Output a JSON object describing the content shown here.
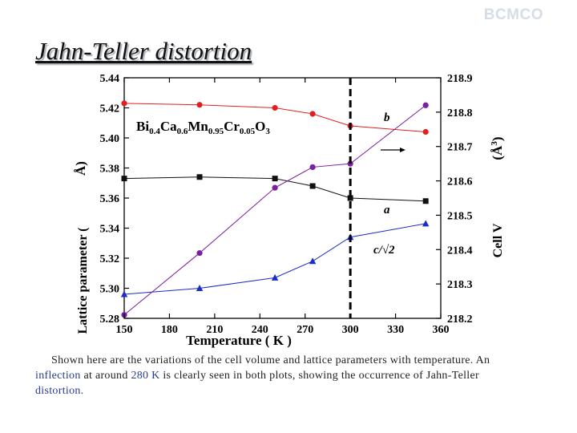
{
  "watermark": "BCMCO",
  "title": "Jahn-Teller distortion",
  "caption": {
    "part1": "Shown here are the variations of the cell volume and lattice parameters with temperature. An ",
    "hl1": "inflection",
    "part2": " at around ",
    "hl2": "280 K",
    "part3": " is clearly seen in both plots, showing the occurrence of Jahn-Teller ",
    "hl3": "distortion."
  },
  "chart_data": {
    "type": "line",
    "xlabel": "Temperature ( K )",
    "ylabel_left": "Lattice parameter (Å)",
    "ylabel_right": "Cell V (Å³)",
    "xlim": [
      150,
      360
    ],
    "xticks": [
      150,
      180,
      210,
      240,
      270,
      300,
      330,
      360
    ],
    "ylim_left": [
      5.28,
      5.44
    ],
    "yticks_left": [
      "5.28",
      "5.30",
      "5.32",
      "5.34",
      "5.36",
      "5.38",
      "5.40",
      "5.42",
      "5.44"
    ],
    "ylim_right": [
      218.2,
      218.9
    ],
    "yticks_right": [
      "218.2",
      "218.3",
      "218.4",
      "218.5",
      "218.6",
      "218.7",
      "218.8",
      "218.9"
    ],
    "compound": {
      "base": "Bi",
      "s1": "0.4",
      "e2": "Ca",
      "s2": "0.6",
      "e3": "Mn",
      "s3": "0.95",
      "e4": "Cr",
      "s4": "0.05",
      "e5": "O",
      "s5": "3"
    },
    "vline_x": 300,
    "series": [
      {
        "name": "b",
        "axis": "left",
        "color": "#e02020",
        "marker": "circle",
        "x": [
          150,
          200,
          250,
          275,
          300,
          350
        ],
        "values": [
          5.423,
          5.422,
          5.42,
          5.416,
          5.408,
          5.404
        ]
      },
      {
        "name": "a",
        "axis": "left",
        "color": "#111111",
        "marker": "square",
        "x": [
          150,
          200,
          250,
          275,
          300,
          350
        ],
        "values": [
          5.373,
          5.374,
          5.373,
          5.368,
          5.36,
          5.358
        ]
      },
      {
        "name": "c/√2",
        "axis": "left",
        "color": "#1a2ccc",
        "marker": "triangle",
        "x": [
          150,
          200,
          250,
          275,
          300,
          350
        ],
        "values": [
          5.296,
          5.3,
          5.307,
          5.318,
          5.334,
          5.343
        ]
      },
      {
        "name": "V",
        "axis": "right",
        "color": "#7a1fa0",
        "marker": "circle",
        "x": [
          150,
          200,
          250,
          275,
          300,
          350
        ],
        "values": [
          218.21,
          218.39,
          218.58,
          218.64,
          218.65,
          218.82
        ]
      }
    ]
  }
}
